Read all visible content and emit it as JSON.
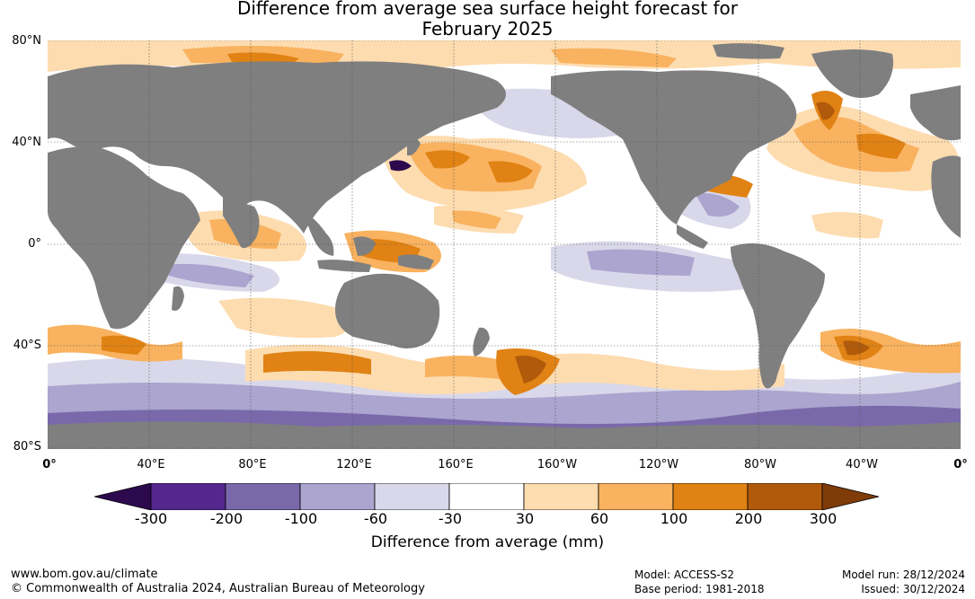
{
  "title": {
    "line1": "Difference from average sea surface height forecast for",
    "line2": "February 2025"
  },
  "map": {
    "latitude_labels": [
      "80°N",
      "40°N",
      "0°",
      "40°S",
      "80°S"
    ],
    "longitude_labels": [
      "0°",
      "40°E",
      "80°E",
      "120°E",
      "160°E",
      "160°W",
      "120°W",
      "80°W",
      "40°W",
      "0°"
    ],
    "colors": {
      "land": "#7f7f7f",
      "ocean_neutral": "#ffffff",
      "gridline": "#555555"
    }
  },
  "legend": {
    "title": "Difference from average (mm)",
    "tick_labels": [
      "-300",
      "-200",
      "-100",
      "-60",
      "-30",
      "30",
      "60",
      "100",
      "200",
      "300"
    ],
    "colors": [
      "#2d0a4e",
      "#54278f",
      "#7a69aa",
      "#aba5cf",
      "#d9d8ea",
      "#ffffff",
      "#fddcb0",
      "#f9b25f",
      "#e08214",
      "#b15a0b",
      "#7f3b08"
    ]
  },
  "footer": {
    "website": "www.bom.gov.au/climate",
    "copyright": "© Commonwealth of Australia 2024, Australian Bureau of Meteorology",
    "model": "Model: ACCESS-S2",
    "base_period": "Base period: 1981-2018",
    "model_run": "Model run: 28/12/2024",
    "issued": "Issued: 30/12/2024"
  }
}
